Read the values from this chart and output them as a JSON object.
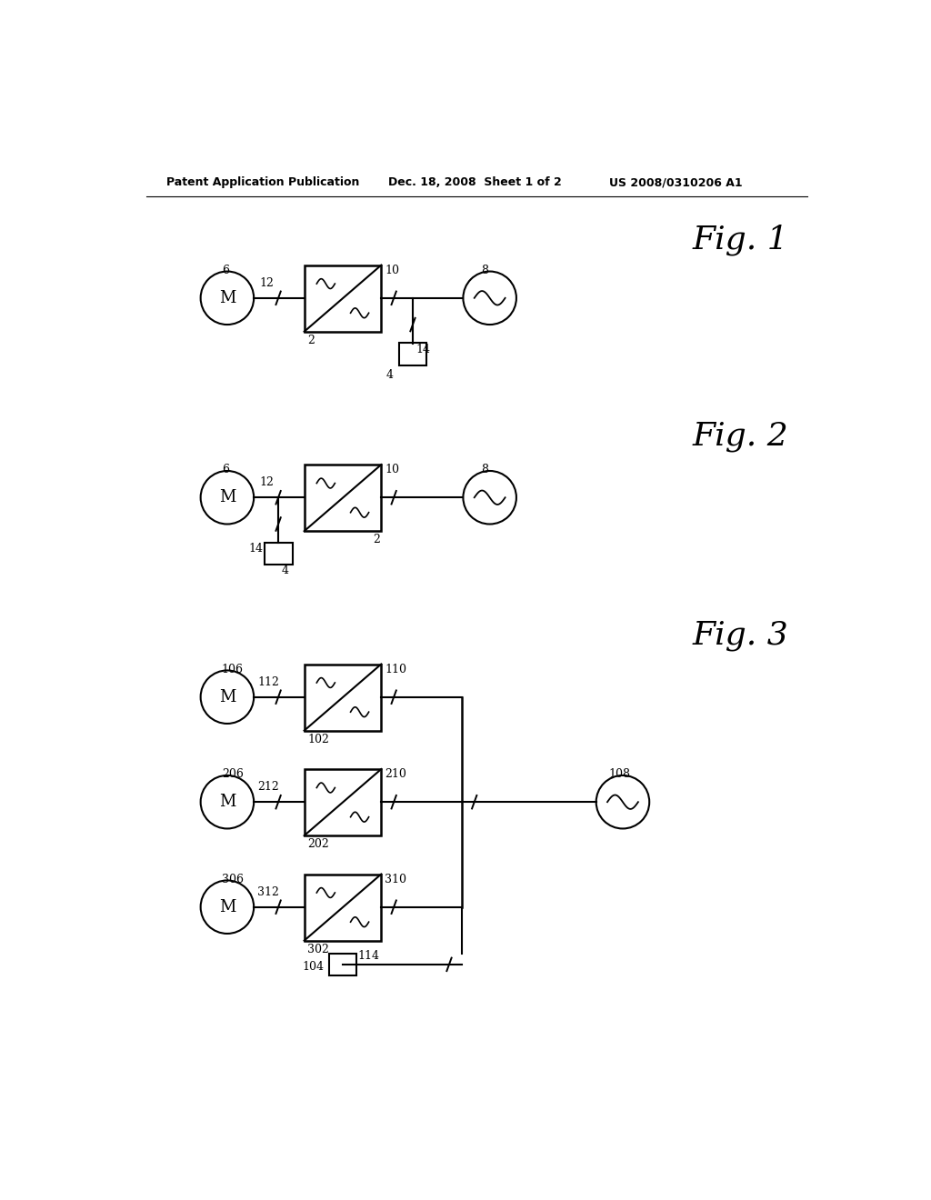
{
  "header_left": "Patent Application Publication",
  "header_mid": "Dec. 18, 2008  Sheet 1 of 2",
  "header_right": "US 2008/0310206 A1",
  "fig1_label": "Fig. 1",
  "fig2_label": "Fig. 2",
  "fig3_label": "Fig. 3",
  "bg_color": "#ffffff",
  "line_color": "#000000",
  "text_color": "#000000"
}
